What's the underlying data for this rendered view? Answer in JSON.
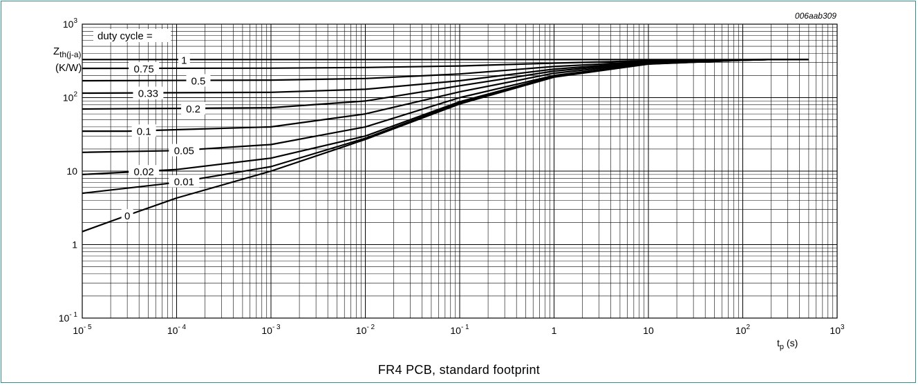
{
  "figure_code": "006aab309",
  "caption": "FR4 PCB, standard footprint",
  "chart_data": {
    "type": "line",
    "x_scale": "log",
    "y_scale": "log",
    "xlim": [
      1e-05,
      1000
    ],
    "ylim": [
      0.1,
      1000
    ],
    "grid": true,
    "x_tick_labels": [
      {
        "base": "10",
        "exp": "- 5"
      },
      {
        "base": "10",
        "exp": "- 4"
      },
      {
        "base": "10",
        "exp": "- 3"
      },
      {
        "base": "10",
        "exp": "- 2"
      },
      {
        "base": "10",
        "exp": "- 1"
      },
      {
        "base": "1",
        "exp": ""
      },
      {
        "base": "10",
        "exp": ""
      },
      {
        "base": "10",
        "exp": "2"
      },
      {
        "base": "10",
        "exp": "3"
      }
    ],
    "y_tick_labels": [
      {
        "base": "10",
        "exp": "- 1"
      },
      {
        "base": "1",
        "exp": ""
      },
      {
        "base": "10",
        "exp": ""
      },
      {
        "base": "10",
        "exp": "2"
      },
      {
        "base": "10",
        "exp": "3"
      }
    ],
    "ylabel_main": "Z",
    "ylabel_sub": "th(j-a)",
    "ylabel_unit": "(K/W)",
    "xlabel_main": "t",
    "xlabel_sub": "p",
    "xlabel_unit": " (s)",
    "legend_title": "duty cycle =",
    "series": [
      {
        "name": "1",
        "label_at": 0.00012,
        "x": [
          1e-05,
          0.001,
          0.1,
          1,
          10,
          100,
          500
        ],
        "y": [
          330,
          330,
          330,
          330,
          330,
          330,
          330
        ]
      },
      {
        "name": "0.75",
        "label_at": 4.5e-05,
        "x": [
          1e-05,
          0.001,
          0.01,
          0.1,
          1,
          10,
          100,
          200,
          500
        ],
        "y": [
          250,
          252,
          257,
          270,
          295,
          318,
          328,
          330,
          330
        ]
      },
      {
        "name": "0.5",
        "label_at": 0.00017,
        "x": [
          1e-05,
          0.001,
          0.01,
          0.1,
          1,
          10,
          100,
          200,
          500
        ],
        "y": [
          170,
          173,
          182,
          210,
          265,
          310,
          327,
          330,
          330
        ]
      },
      {
        "name": "0.33",
        "label_at": 5e-05,
        "x": [
          1e-05,
          0.001,
          0.01,
          0.1,
          1,
          10,
          100,
          200,
          500
        ],
        "y": [
          115,
          118,
          130,
          170,
          245,
          305,
          326,
          330,
          330
        ]
      },
      {
        "name": "0.2",
        "label_at": 0.00015,
        "x": [
          1e-05,
          0.001,
          0.01,
          0.1,
          1,
          10,
          100,
          200,
          500
        ],
        "y": [
          70,
          73,
          90,
          145,
          230,
          300,
          325,
          330,
          330
        ]
      },
      {
        "name": "0.1",
        "label_at": 4.5e-05,
        "x": [
          1e-05,
          3e-05,
          0.001,
          0.01,
          0.1,
          1,
          10,
          100,
          200,
          500
        ],
        "y": [
          35,
          35,
          40,
          60,
          120,
          215,
          295,
          325,
          330,
          330
        ]
      },
      {
        "name": "0.05",
        "label_at": 0.00012,
        "x": [
          1e-05,
          0.0001,
          0.001,
          0.01,
          0.1,
          1,
          10,
          100,
          200,
          500
        ],
        "y": [
          18,
          19,
          23,
          40,
          100,
          200,
          290,
          324,
          330,
          330
        ]
      },
      {
        "name": "0.02",
        "label_at": 4.5e-05,
        "x": [
          1e-05,
          0.0001,
          0.001,
          0.01,
          0.1,
          1,
          10,
          100,
          200,
          500
        ],
        "y": [
          9,
          10.5,
          15,
          30,
          88,
          195,
          288,
          323,
          330,
          330
        ]
      },
      {
        "name": "0.01",
        "label_at": 0.00012,
        "x": [
          1e-05,
          0.0001,
          0.001,
          0.01,
          0.1,
          1,
          10,
          100,
          200,
          500
        ],
        "y": [
          5,
          7,
          11.5,
          28,
          85,
          192,
          287,
          323,
          330,
          330
        ]
      },
      {
        "name": "0",
        "label_at": 3e-05,
        "x": [
          1e-05,
          3e-05,
          0.0001,
          0.001,
          0.01,
          0.1,
          1,
          10,
          100,
          200,
          500
        ],
        "y": [
          1.5,
          2.5,
          4.3,
          10,
          27,
          82,
          190,
          286,
          323,
          330,
          330
        ]
      }
    ]
  }
}
